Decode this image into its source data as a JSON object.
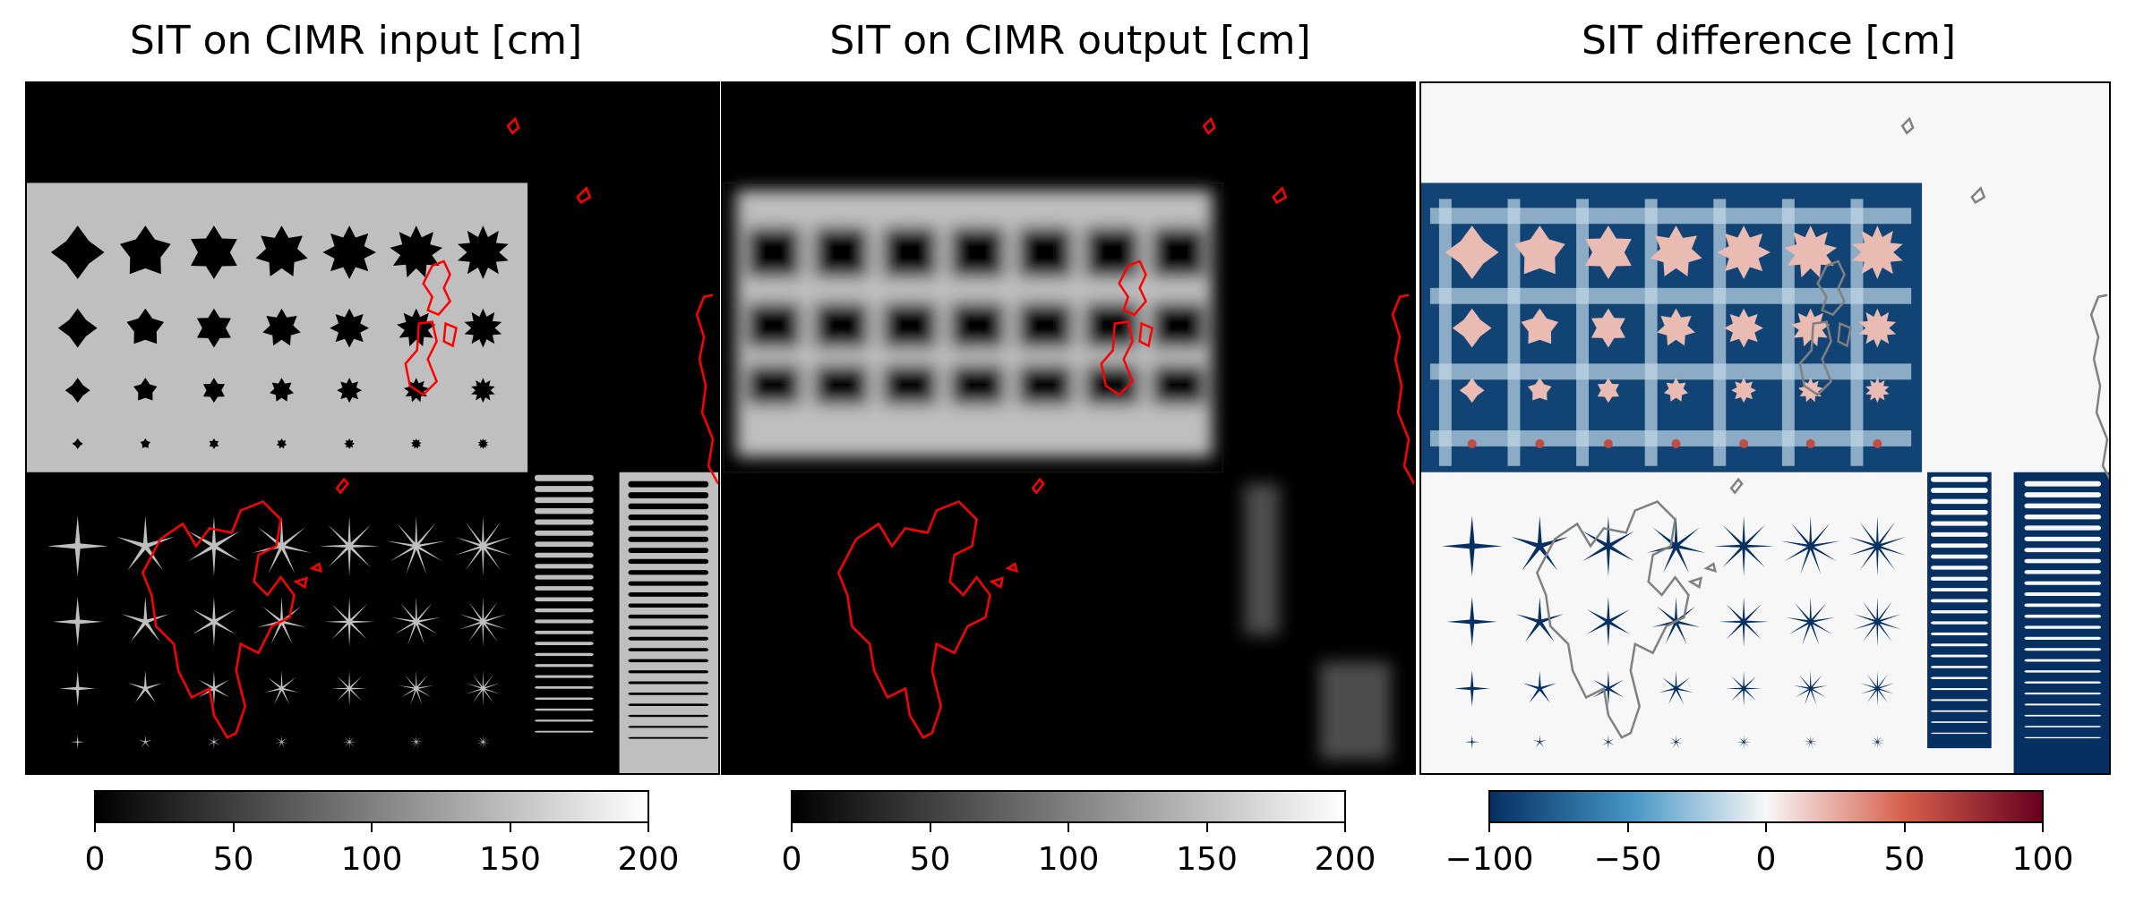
{
  "chart_data": [
    {
      "type": "heatmap",
      "title": "SIT on CIMR input [cm]",
      "colormap": "gray",
      "colorbar": {
        "min": 0,
        "max": 200,
        "ticks": [
          "0",
          "50",
          "100",
          "150",
          "200"
        ],
        "colors": [
          "#000000",
          "#ffffff"
        ]
      },
      "regions": [
        {
          "name": "background",
          "value": 0
        },
        {
          "name": "upper rectangle with star/diamond holes",
          "value": 150
        },
        {
          "name": "lower spiky stars",
          "value": 150
        },
        {
          "name": "dot column strip",
          "value": 150
        },
        {
          "name": "right strip with dots",
          "value": 150
        }
      ],
      "coastline_color": "#ff0000"
    },
    {
      "type": "heatmap",
      "title": "SIT on CIMR output [cm]",
      "colormap": "gray",
      "colorbar": {
        "min": 0,
        "max": 200,
        "ticks": [
          "0",
          "50",
          "100",
          "150",
          "200"
        ],
        "colors": [
          "#000000",
          "#ffffff"
        ]
      },
      "regions": [
        {
          "name": "smoothed upper rectangle",
          "value": 150
        },
        {
          "name": "smoothed strips",
          "value": 60
        }
      ],
      "coastline_color": "#ff0000"
    },
    {
      "type": "heatmap",
      "title": "SIT difference [cm]",
      "colormap": "RdBu_r",
      "colorbar": {
        "min": -100,
        "max": 100,
        "ticks": [
          "−100",
          "−50",
          "0",
          "50",
          "100"
        ],
        "colors": [
          "#053061",
          "#4393c3",
          "#f7f7f7",
          "#d6604d",
          "#67001f"
        ]
      },
      "regions": [
        {
          "name": "upper rectangle",
          "value": -90
        },
        {
          "name": "star interiors",
          "value": 20
        },
        {
          "name": "spiky stars",
          "value": -100
        },
        {
          "name": "dot strips",
          "value": -100
        }
      ],
      "coastline_color": "#808080"
    }
  ]
}
